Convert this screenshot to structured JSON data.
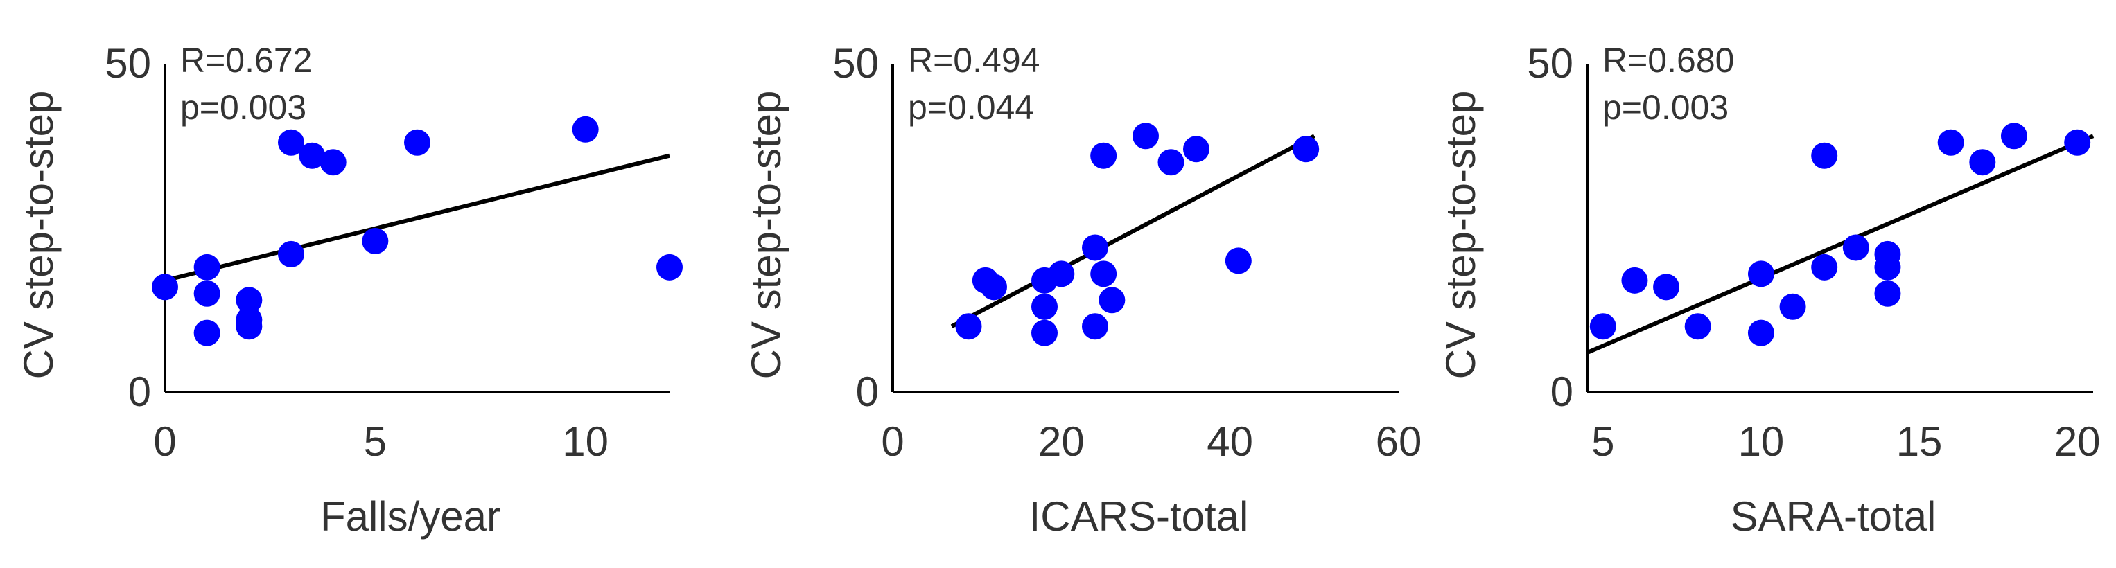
{
  "colors": {
    "point": "#0000ff",
    "axis": "#000000",
    "fit": "#000000",
    "text": "#333333"
  },
  "chart_data": [
    {
      "type": "scatter",
      "xlabel": "Falls/year",
      "ylabel": "CV step-to-step",
      "xlim": [
        0,
        12
      ],
      "ylim": [
        0,
        50
      ],
      "xticks": [
        "0",
        "5",
        "10"
      ],
      "yticks": [
        "0",
        "50"
      ],
      "annotations": [
        "R=0.672",
        "p=0.003"
      ],
      "fit_line": {
        "x": [
          0,
          12
        ],
        "y": [
          17,
          36
        ]
      },
      "points": [
        {
          "x": 0,
          "y": 16
        },
        {
          "x": 1,
          "y": 19
        },
        {
          "x": 1,
          "y": 15
        },
        {
          "x": 1,
          "y": 9
        },
        {
          "x": 2,
          "y": 14
        },
        {
          "x": 2,
          "y": 11
        },
        {
          "x": 2,
          "y": 10
        },
        {
          "x": 3,
          "y": 38
        },
        {
          "x": 3.5,
          "y": 36
        },
        {
          "x": 4,
          "y": 35
        },
        {
          "x": 3,
          "y": 21
        },
        {
          "x": 5,
          "y": 23
        },
        {
          "x": 6,
          "y": 38
        },
        {
          "x": 10,
          "y": 40
        },
        {
          "x": 12,
          "y": 19
        }
      ]
    },
    {
      "type": "scatter",
      "xlabel": "ICARS-total",
      "ylabel": "CV step-to-step",
      "xlim": [
        0,
        60
      ],
      "ylim": [
        0,
        50
      ],
      "xticks": [
        "0",
        "20",
        "40",
        "60"
      ],
      "yticks": [
        "0",
        "50"
      ],
      "annotations": [
        "R=0.494",
        "p=0.044"
      ],
      "fit_line": {
        "x": [
          7,
          50
        ],
        "y": [
          10,
          39
        ]
      },
      "points": [
        {
          "x": 9,
          "y": 10
        },
        {
          "x": 11,
          "y": 17
        },
        {
          "x": 12,
          "y": 16
        },
        {
          "x": 18,
          "y": 9
        },
        {
          "x": 18,
          "y": 13
        },
        {
          "x": 18,
          "y": 17
        },
        {
          "x": 20,
          "y": 18
        },
        {
          "x": 24,
          "y": 10
        },
        {
          "x": 24,
          "y": 22
        },
        {
          "x": 25,
          "y": 18
        },
        {
          "x": 26,
          "y": 14
        },
        {
          "x": 25,
          "y": 36
        },
        {
          "x": 30,
          "y": 39
        },
        {
          "x": 33,
          "y": 35
        },
        {
          "x": 36,
          "y": 37
        },
        {
          "x": 41,
          "y": 20
        },
        {
          "x": 49,
          "y": 37
        }
      ]
    },
    {
      "type": "scatter",
      "xlabel": "SARA-total",
      "ylabel": "CV step-to-step",
      "xlim": [
        4.5,
        20.5
      ],
      "ylim": [
        0,
        50
      ],
      "xticks": [
        "5",
        "10",
        "15",
        "20"
      ],
      "yticks": [
        "0",
        "50"
      ],
      "annotations": [
        "R=0.680",
        "p=0.003"
      ],
      "fit_line": {
        "x": [
          4.5,
          20.5
        ],
        "y": [
          6,
          39
        ]
      },
      "points": [
        {
          "x": 5,
          "y": 10
        },
        {
          "x": 6,
          "y": 17
        },
        {
          "x": 7,
          "y": 16
        },
        {
          "x": 8,
          "y": 10
        },
        {
          "x": 10,
          "y": 9
        },
        {
          "x": 10,
          "y": 18
        },
        {
          "x": 11,
          "y": 13
        },
        {
          "x": 12,
          "y": 19
        },
        {
          "x": 12,
          "y": 36
        },
        {
          "x": 13,
          "y": 22
        },
        {
          "x": 14,
          "y": 21
        },
        {
          "x": 14,
          "y": 19
        },
        {
          "x": 14,
          "y": 15
        },
        {
          "x": 16,
          "y": 38
        },
        {
          "x": 17,
          "y": 35
        },
        {
          "x": 18,
          "y": 39
        },
        {
          "x": 20,
          "y": 38
        }
      ]
    }
  ]
}
